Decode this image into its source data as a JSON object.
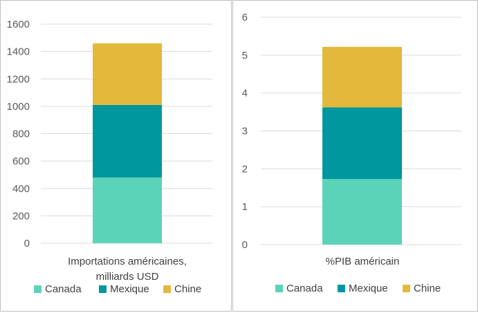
{
  "colors": {
    "Canada": "#5bd3b9",
    "Mexique": "#00979e",
    "Chine": "#e2b93b",
    "grid": "#d9d9d9"
  },
  "chart_data": [
    {
      "type": "bar",
      "stacked": true,
      "categories": [
        "Importations américaines, milliards USD"
      ],
      "category_lines": [
        "Importations américaines,",
        "milliards USD"
      ],
      "series": [
        {
          "name": "Canada",
          "values": [
            480
          ]
        },
        {
          "name": "Mexique",
          "values": [
            530
          ]
        },
        {
          "name": "Chine",
          "values": [
            450
          ]
        }
      ],
      "ylim": [
        0,
        1600
      ],
      "yticks": [
        0,
        200,
        400,
        600,
        800,
        1000,
        1200,
        1400,
        1600
      ],
      "grid": true,
      "legend": "bottom"
    },
    {
      "type": "bar",
      "stacked": true,
      "categories": [
        "%PIB américain"
      ],
      "category_lines": [
        "%PIB américain"
      ],
      "series": [
        {
          "name": "Canada",
          "values": [
            1.73
          ]
        },
        {
          "name": "Mexique",
          "values": [
            1.89
          ]
        },
        {
          "name": "Chine",
          "values": [
            1.6
          ]
        }
      ],
      "ylim": [
        0,
        6
      ],
      "yticks": [
        0,
        1,
        2,
        3,
        4,
        5,
        6
      ],
      "grid": true,
      "legend": "bottom"
    }
  ]
}
